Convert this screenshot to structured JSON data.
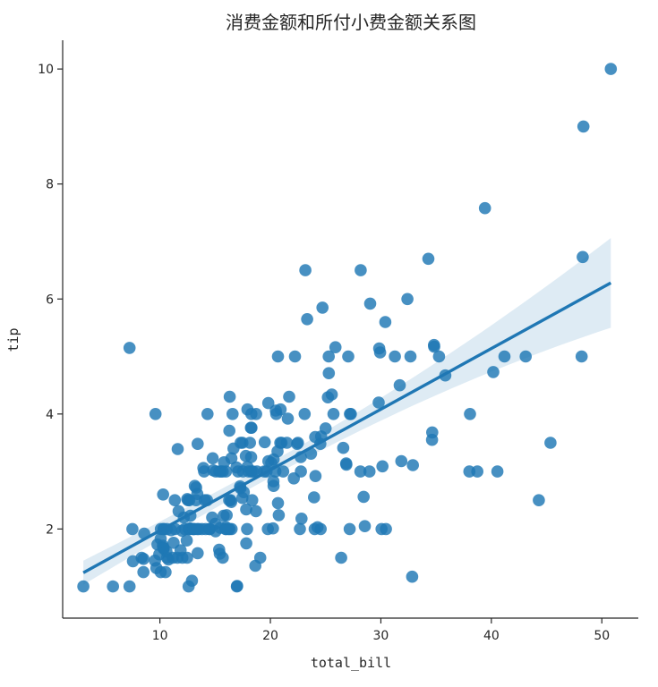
{
  "chart_data": {
    "type": "scatter",
    "title": "消费金额和所付小费金额关系图",
    "xlabel": "total_bill",
    "ylabel": "tip",
    "xlim": [
      1.2,
      53.3
    ],
    "ylim": [
      0.45,
      10.5
    ],
    "xticks": [
      10,
      20,
      30,
      40,
      50
    ],
    "yticks": [
      2,
      4,
      6,
      8,
      10
    ],
    "grid": false,
    "color": "#1f77b4",
    "points": [
      [
        3.07,
        1.0
      ],
      [
        5.75,
        1.0
      ],
      [
        7.25,
        1.0
      ],
      [
        7.25,
        5.15
      ],
      [
        7.51,
        2.0
      ],
      [
        7.56,
        1.44
      ],
      [
        8.35,
        1.5
      ],
      [
        8.51,
        1.25
      ],
      [
        8.52,
        1.48
      ],
      [
        8.58,
        1.92
      ],
      [
        9.55,
        1.45
      ],
      [
        9.6,
        4.0
      ],
      [
        9.68,
        1.32
      ],
      [
        9.78,
        1.73
      ],
      [
        9.94,
        1.56
      ],
      [
        10.07,
        1.25
      ],
      [
        10.07,
        1.83
      ],
      [
        10.09,
        2.0
      ],
      [
        10.27,
        1.71
      ],
      [
        10.29,
        2.6
      ],
      [
        10.33,
        1.67
      ],
      [
        10.33,
        2.0
      ],
      [
        10.34,
        1.66
      ],
      [
        10.34,
        2.0
      ],
      [
        10.51,
        1.25
      ],
      [
        10.59,
        1.61
      ],
      [
        10.63,
        2.0
      ],
      [
        10.65,
        1.5
      ],
      [
        10.77,
        1.47
      ],
      [
        11.02,
        1.98
      ],
      [
        11.17,
        1.5
      ],
      [
        11.24,
        1.76
      ],
      [
        11.35,
        2.5
      ],
      [
        11.38,
        2.0
      ],
      [
        11.59,
        1.5
      ],
      [
        11.61,
        3.39
      ],
      [
        11.69,
        2.31
      ],
      [
        11.87,
        1.63
      ],
      [
        12.02,
        1.97
      ],
      [
        12.03,
        1.5
      ],
      [
        12.16,
        2.2
      ],
      [
        12.26,
        2.0
      ],
      [
        12.43,
        1.8
      ],
      [
        12.46,
        1.5
      ],
      [
        12.48,
        2.52
      ],
      [
        12.54,
        2.5
      ],
      [
        12.6,
        1.0
      ],
      [
        12.6,
        2.0
      ],
      [
        12.66,
        2.5
      ],
      [
        12.69,
        2.0
      ],
      [
        12.74,
        2.01
      ],
      [
        12.76,
        2.23
      ],
      [
        12.9,
        1.1
      ],
      [
        13.0,
        2.0
      ],
      [
        13.03,
        2.0
      ],
      [
        13.13,
        2.0
      ],
      [
        13.16,
        2.75
      ],
      [
        13.27,
        2.5
      ],
      [
        13.28,
        2.72
      ],
      [
        13.37,
        2.0
      ],
      [
        13.39,
        2.61
      ],
      [
        13.42,
        1.58
      ],
      [
        13.42,
        3.48
      ],
      [
        13.51,
        2.0
      ],
      [
        13.81,
        2.0
      ],
      [
        13.94,
        3.06
      ],
      [
        14.0,
        3.0
      ],
      [
        14.07,
        2.5
      ],
      [
        14.15,
        2.0
      ],
      [
        14.26,
        2.5
      ],
      [
        14.31,
        4.0
      ],
      [
        14.48,
        2.0
      ],
      [
        14.52,
        2.0
      ],
      [
        14.73,
        2.2
      ],
      [
        14.78,
        3.23
      ],
      [
        14.83,
        3.02
      ],
      [
        15.01,
        2.09
      ],
      [
        15.04,
        1.96
      ],
      [
        15.06,
        3.0
      ],
      [
        15.36,
        1.64
      ],
      [
        15.38,
        3.0
      ],
      [
        15.42,
        1.57
      ],
      [
        15.48,
        2.02
      ],
      [
        15.53,
        3.0
      ],
      [
        15.69,
        1.5
      ],
      [
        15.69,
        3.0
      ],
      [
        15.77,
        2.23
      ],
      [
        15.81,
        3.16
      ],
      [
        15.95,
        2.0
      ],
      [
        15.98,
        2.03
      ],
      [
        15.98,
        3.0
      ],
      [
        16.0,
        2.0
      ],
      [
        16.04,
        2.24
      ],
      [
        16.21,
        2.0
      ],
      [
        16.27,
        2.5
      ],
      [
        16.29,
        3.71
      ],
      [
        16.31,
        2.0
      ],
      [
        16.32,
        4.3
      ],
      [
        16.4,
        2.5
      ],
      [
        16.45,
        2.47
      ],
      [
        16.47,
        3.23
      ],
      [
        16.49,
        2.0
      ],
      [
        16.58,
        4.0
      ],
      [
        16.66,
        3.4
      ],
      [
        16.93,
        3.07
      ],
      [
        16.97,
        1.0
      ],
      [
        16.99,
        1.01
      ],
      [
        17.07,
        3.0
      ],
      [
        17.26,
        2.74
      ],
      [
        17.29,
        2.71
      ],
      [
        17.31,
        3.5
      ],
      [
        17.46,
        2.54
      ],
      [
        17.47,
        3.5
      ],
      [
        17.51,
        3.0
      ],
      [
        17.59,
        2.64
      ],
      [
        17.78,
        3.27
      ],
      [
        17.81,
        2.34
      ],
      [
        17.82,
        1.75
      ],
      [
        17.89,
        2.0
      ],
      [
        17.92,
        3.08
      ],
      [
        17.92,
        4.08
      ],
      [
        18.04,
        3.0
      ],
      [
        18.15,
        3.5
      ],
      [
        18.24,
        3.76
      ],
      [
        18.26,
        3.25
      ],
      [
        18.28,
        4.0
      ],
      [
        18.29,
        3.76
      ],
      [
        18.29,
        3.0
      ],
      [
        18.35,
        2.5
      ],
      [
        18.43,
        3.0
      ],
      [
        18.64,
        1.36
      ],
      [
        18.69,
        2.31
      ],
      [
        18.71,
        4.0
      ],
      [
        18.78,
        3.0
      ],
      [
        19.08,
        1.5
      ],
      [
        19.44,
        3.0
      ],
      [
        19.49,
        3.51
      ],
      [
        19.65,
        3.0
      ],
      [
        19.77,
        2.0
      ],
      [
        19.81,
        4.19
      ],
      [
        19.82,
        3.18
      ],
      [
        20.08,
        3.15
      ],
      [
        20.23,
        2.01
      ],
      [
        20.27,
        2.83
      ],
      [
        20.29,
        2.75
      ],
      [
        20.29,
        3.21
      ],
      [
        20.45,
        3.0
      ],
      [
        20.49,
        4.06
      ],
      [
        20.53,
        4.0
      ],
      [
        20.65,
        3.35
      ],
      [
        20.69,
        2.45
      ],
      [
        20.69,
        5.0
      ],
      [
        20.76,
        2.24
      ],
      [
        20.9,
        3.5
      ],
      [
        20.92,
        4.08
      ],
      [
        21.01,
        3.5
      ],
      [
        21.16,
        3.0
      ],
      [
        21.5,
        3.5
      ],
      [
        21.58,
        3.92
      ],
      [
        21.7,
        4.3
      ],
      [
        22.12,
        2.88
      ],
      [
        22.23,
        5.0
      ],
      [
        22.42,
        3.48
      ],
      [
        22.49,
        3.5
      ],
      [
        22.67,
        2.0
      ],
      [
        22.75,
        3.25
      ],
      [
        22.76,
        3.0
      ],
      [
        22.82,
        2.18
      ],
      [
        23.1,
        4.0
      ],
      [
        23.17,
        6.5
      ],
      [
        23.33,
        5.65
      ],
      [
        23.68,
        3.31
      ],
      [
        23.95,
        2.55
      ],
      [
        24.01,
        2.0
      ],
      [
        24.06,
        3.6
      ],
      [
        24.08,
        2.92
      ],
      [
        24.27,
        2.03
      ],
      [
        24.52,
        3.48
      ],
      [
        24.55,
        2.0
      ],
      [
        24.59,
        3.61
      ],
      [
        24.71,
        5.85
      ],
      [
        25.0,
        3.75
      ],
      [
        25.21,
        4.29
      ],
      [
        25.28,
        5.0
      ],
      [
        25.29,
        4.71
      ],
      [
        25.56,
        4.34
      ],
      [
        25.71,
        4.0
      ],
      [
        25.89,
        5.16
      ],
      [
        26.41,
        1.5
      ],
      [
        26.59,
        3.41
      ],
      [
        26.86,
        3.14
      ],
      [
        26.88,
        3.12
      ],
      [
        27.05,
        5.0
      ],
      [
        27.18,
        2.0
      ],
      [
        27.2,
        4.0
      ],
      [
        27.28,
        4.0
      ],
      [
        28.15,
        3.0
      ],
      [
        28.17,
        6.5
      ],
      [
        28.44,
        2.56
      ],
      [
        28.55,
        2.05
      ],
      [
        28.97,
        3.0
      ],
      [
        29.03,
        5.92
      ],
      [
        29.8,
        4.2
      ],
      [
        29.85,
        5.14
      ],
      [
        29.93,
        5.07
      ],
      [
        30.06,
        2.0
      ],
      [
        30.14,
        3.09
      ],
      [
        30.4,
        5.6
      ],
      [
        30.46,
        2.0
      ],
      [
        31.27,
        5.0
      ],
      [
        31.71,
        4.5
      ],
      [
        31.85,
        3.18
      ],
      [
        32.4,
        6.0
      ],
      [
        32.68,
        5.0
      ],
      [
        32.83,
        1.17
      ],
      [
        32.9,
        3.11
      ],
      [
        34.3,
        6.7
      ],
      [
        34.63,
        3.55
      ],
      [
        34.65,
        3.68
      ],
      [
        34.81,
        5.2
      ],
      [
        34.83,
        5.17
      ],
      [
        35.26,
        5.0
      ],
      [
        35.83,
        4.67
      ],
      [
        38.01,
        3.0
      ],
      [
        38.07,
        4.0
      ],
      [
        38.73,
        3.0
      ],
      [
        39.42,
        7.58
      ],
      [
        40.17,
        4.73
      ],
      [
        40.55,
        3.0
      ],
      [
        41.19,
        5.0
      ],
      [
        43.11,
        5.0
      ],
      [
        44.3,
        2.5
      ],
      [
        45.35,
        3.5
      ],
      [
        48.17,
        5.0
      ],
      [
        48.27,
        6.73
      ],
      [
        48.33,
        9.0
      ],
      [
        50.81,
        10.0
      ]
    ],
    "regression": {
      "x": [
        3.07,
        50.81
      ],
      "y": [
        1.24,
        6.28
      ],
      "ci_lower": [
        1.03,
        5.48
      ],
      "ci_upper": [
        1.45,
        7.04
      ]
    }
  }
}
